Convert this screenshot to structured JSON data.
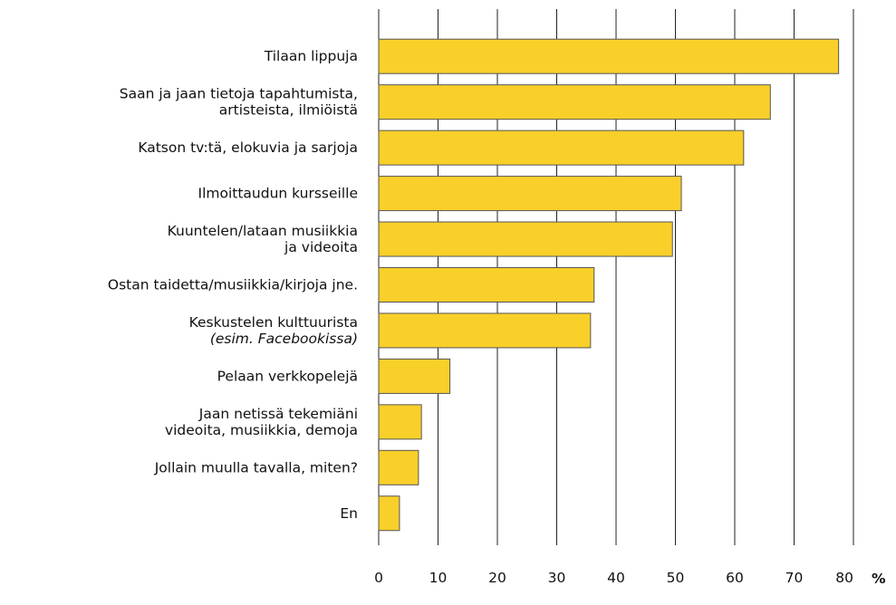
{
  "chart_data": {
    "type": "barh",
    "categories": [
      "Tilaan lippuja",
      "Saan ja jaan tietoja  tapahtumista,\nartisteista, ilmiöistä",
      "Katson tv:tä, elokuvia ja sarjoja",
      "Ilmoittaudun kursseille",
      "Kuuntelen/lataan musiikkia\nja videoita",
      "Ostan taidetta/musiikkia/kirjoja jne.",
      "Keskustelen kulttuurista\n(esim. Facebookissa)",
      "Pelaan verkkopelejä",
      "Jaan netissä tekemiäni\nvideoita, musiikkia, demoja",
      "Jollain muulla tavalla, miten?",
      "En"
    ],
    "values": [
      77.5,
      66,
      61.5,
      51,
      49.5,
      36.3,
      35.7,
      12,
      7.2,
      6.7,
      3.5
    ],
    "color": "#f9cf2a",
    "xlim": [
      0,
      80
    ],
    "xticks": [
      0,
      10,
      20,
      30,
      40,
      50,
      60,
      70,
      80
    ],
    "x_label": "%",
    "grid": true
  }
}
